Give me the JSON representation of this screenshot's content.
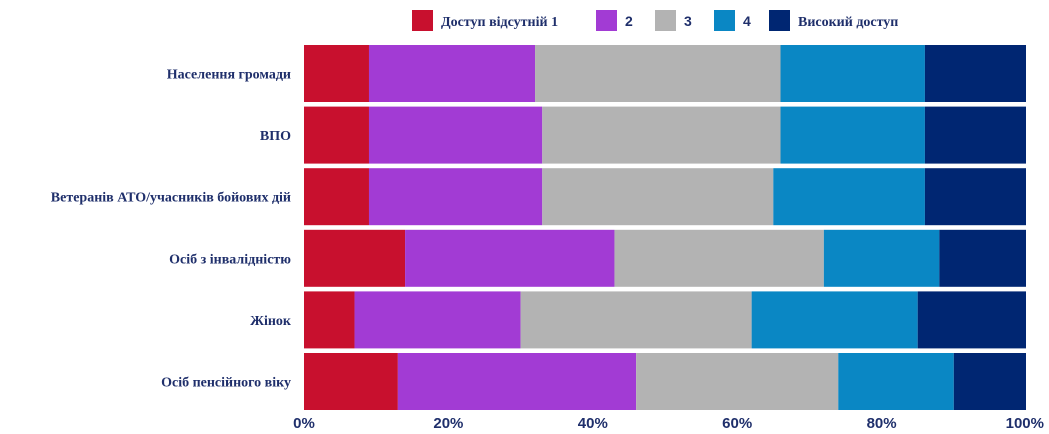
{
  "chart_data": {
    "type": "bar",
    "orientation": "horizontal",
    "stacked": true,
    "normalized": true,
    "categories": [
      "Населення громади",
      "ВПО",
      "Ветеранів АТО/учасників бойових дій",
      "Осіб з інвалідністю",
      "Жінок",
      "Осіб пенсійного віку"
    ],
    "series": [
      {
        "name": "Доступ відсутній 1",
        "color": "#c8102e",
        "values": [
          9,
          9,
          9,
          14,
          7,
          13
        ]
      },
      {
        "name": "2",
        "color": "#a23bd4",
        "values": [
          23,
          24,
          24,
          29,
          23,
          33
        ]
      },
      {
        "name": "3",
        "color": "#b3b3b3",
        "values": [
          34,
          33,
          32,
          29,
          32,
          28
        ]
      },
      {
        "name": "4",
        "color": "#0a87c4",
        "values": [
          20,
          20,
          21,
          16,
          23,
          16
        ]
      },
      {
        "name": "Високий доступ",
        "color": "#002672",
        "values": [
          14,
          14,
          14,
          12,
          15,
          10
        ]
      }
    ],
    "xlim": [
      0,
      100
    ],
    "x_ticks": [
      "0%",
      "20%",
      "40%",
      "60%",
      "80%",
      "100%"
    ],
    "legend_position": "top",
    "grid": false,
    "title": "",
    "xlabel": "",
    "ylabel": ""
  }
}
